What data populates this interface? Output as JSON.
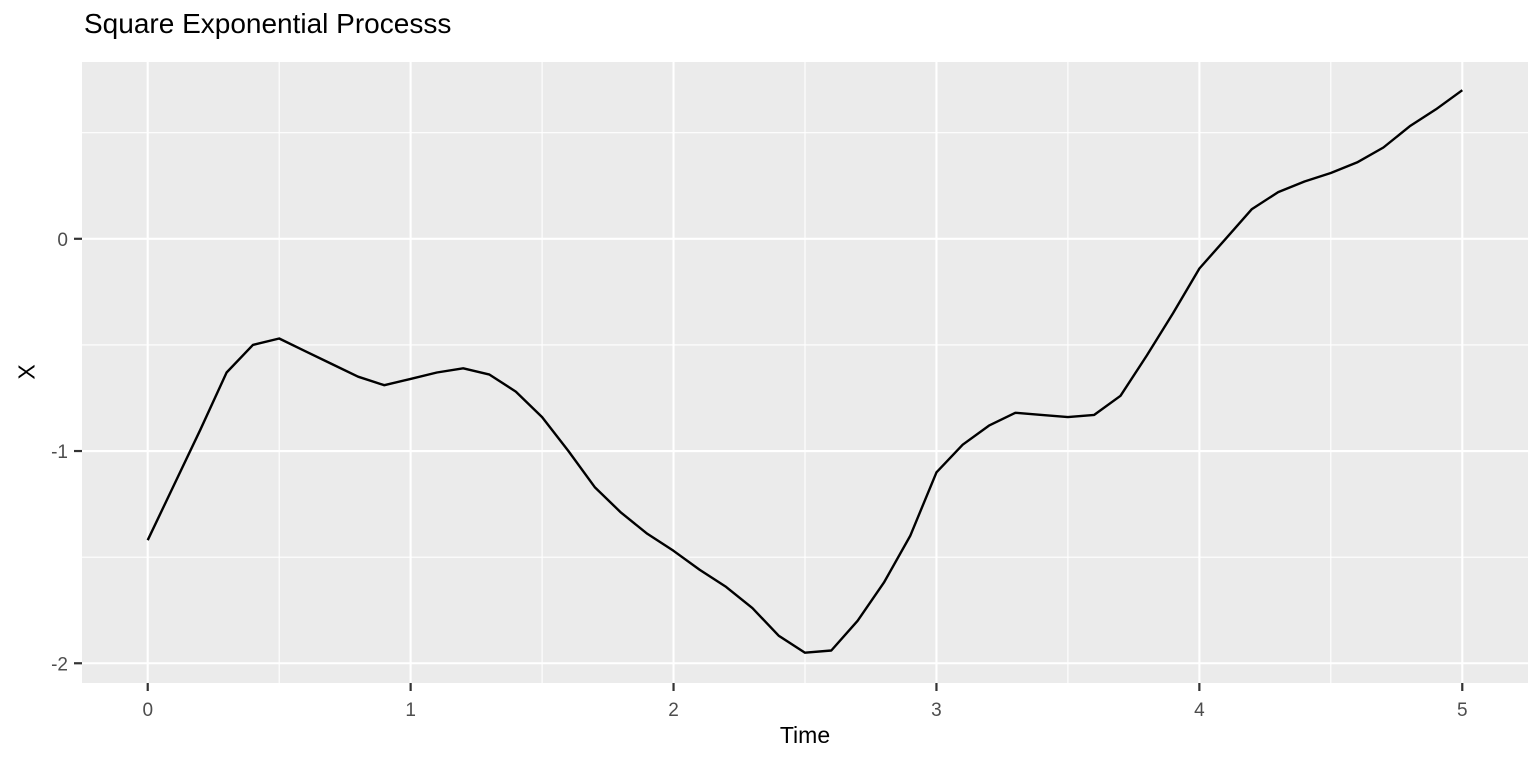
{
  "chart_data": {
    "type": "line",
    "title": "Square Exponential Processs",
    "xlabel": "Time",
    "ylabel": "X",
    "legend": "none",
    "grid": "major+minor",
    "xlim": [
      -0.25,
      5.25
    ],
    "ylim": [
      -2.093,
      0.833
    ],
    "x_ticks": [
      0,
      1,
      2,
      3,
      4,
      5
    ],
    "x_tick_labels": [
      "0",
      "1",
      "2",
      "3",
      "4",
      "5"
    ],
    "x_minor_ticks": [
      0.5,
      1.5,
      2.5,
      3.5,
      4.5
    ],
    "y_ticks": [
      0,
      -1,
      -2
    ],
    "y_tick_labels": [
      "0",
      "-1",
      "-2"
    ],
    "y_minor_ticks": [
      0.5,
      -0.5,
      -1.5
    ],
    "series": [
      {
        "name": "X",
        "x": [
          0.0,
          0.1,
          0.2,
          0.3,
          0.4,
          0.5,
          0.6,
          0.7,
          0.8,
          0.9,
          1.0,
          1.1,
          1.2,
          1.3,
          1.4,
          1.5,
          1.6,
          1.7,
          1.8,
          1.9,
          2.0,
          2.1,
          2.2,
          2.3,
          2.4,
          2.5,
          2.6,
          2.7,
          2.8,
          2.9,
          3.0,
          3.1,
          3.2,
          3.3,
          3.4,
          3.5,
          3.6,
          3.7,
          3.8,
          3.9,
          4.0,
          4.1,
          4.2,
          4.3,
          4.4,
          4.5,
          4.6,
          4.7,
          4.8,
          4.9,
          5.0
        ],
        "y": [
          -1.42,
          -1.16,
          -0.9,
          -0.63,
          -0.5,
          -0.47,
          -0.53,
          -0.59,
          -0.65,
          -0.69,
          -0.66,
          -0.63,
          -0.61,
          -0.64,
          -0.72,
          -0.84,
          -1.0,
          -1.17,
          -1.29,
          -1.39,
          -1.47,
          -1.56,
          -1.64,
          -1.74,
          -1.87,
          -1.95,
          -1.94,
          -1.8,
          -1.62,
          -1.4,
          -1.1,
          -0.97,
          -0.88,
          -0.82,
          -0.83,
          -0.84,
          -0.83,
          -0.74,
          -0.55,
          -0.35,
          -0.14,
          0.0,
          0.14,
          0.22,
          0.27,
          0.31,
          0.36,
          0.43,
          0.53,
          0.61,
          0.7
        ]
      }
    ],
    "colors": {
      "background": "#FFFFFF",
      "panel_bg": "#EBEBEB",
      "grid": "#FFFFFF",
      "line": "#000000",
      "tick_mark": "#333333",
      "tick_text": "#4D4D4D",
      "title_text": "#000000"
    }
  }
}
